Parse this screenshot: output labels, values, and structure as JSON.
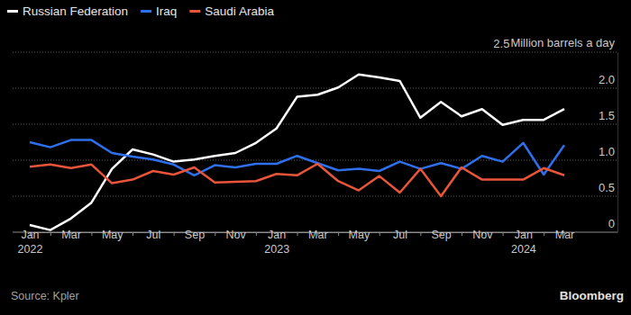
{
  "chart_data": {
    "type": "line",
    "legend": "top-left",
    "grid": true,
    "y_label": "Million barrels a day",
    "source": "Source: Kpler",
    "credit": "Bloomberg",
    "categories": [
      "Jan 2022",
      null,
      "Mar",
      null,
      "May",
      null,
      "Jul",
      null,
      "Sep",
      null,
      "Nov",
      null,
      "Jan 2023",
      null,
      "Mar",
      null,
      "May",
      null,
      "Jul",
      null,
      "Sep",
      null,
      "Nov",
      null,
      "Jan 2024",
      null,
      "Mar"
    ],
    "ylim": [
      0,
      2.5
    ],
    "yticks": [
      0,
      0.5,
      {
        "value": 1,
        "label": "1.0"
      },
      1.5,
      {
        "value": 2,
        "label": "2.0"
      },
      2.5
    ],
    "series": [
      {
        "name": "Russian Federation",
        "color": "#ffffff",
        "values": [
          0.1,
          0.03,
          0.19,
          0.41,
          0.88,
          1.15,
          1.08,
          0.98,
          1.01,
          1.06,
          1.1,
          1.24,
          1.44,
          1.88,
          1.91,
          2.01,
          2.19,
          2.15,
          2.1,
          1.59,
          1.81,
          1.61,
          1.71,
          1.49,
          1.56,
          1.56,
          1.71
        ]
      },
      {
        "name": "Iraq",
        "color": "#2f6fec",
        "values": [
          1.25,
          1.18,
          1.28,
          1.28,
          1.1,
          1.05,
          1.01,
          0.94,
          0.79,
          0.93,
          0.9,
          0.95,
          0.95,
          1.06,
          0.96,
          0.86,
          0.88,
          0.85,
          0.98,
          0.88,
          0.96,
          0.88,
          1.06,
          0.98,
          1.24,
          0.8,
          1.21
        ]
      },
      {
        "name": "Saudi Arabia",
        "color": "#e8553a",
        "values": [
          0.91,
          0.94,
          0.89,
          0.94,
          0.68,
          0.73,
          0.85,
          0.8,
          0.9,
          0.69,
          0.7,
          0.71,
          0.81,
          0.79,
          0.95,
          0.71,
          0.58,
          0.78,
          0.55,
          0.88,
          0.5,
          0.9,
          0.73,
          0.73,
          0.73,
          0.89,
          0.79
        ]
      }
    ]
  }
}
